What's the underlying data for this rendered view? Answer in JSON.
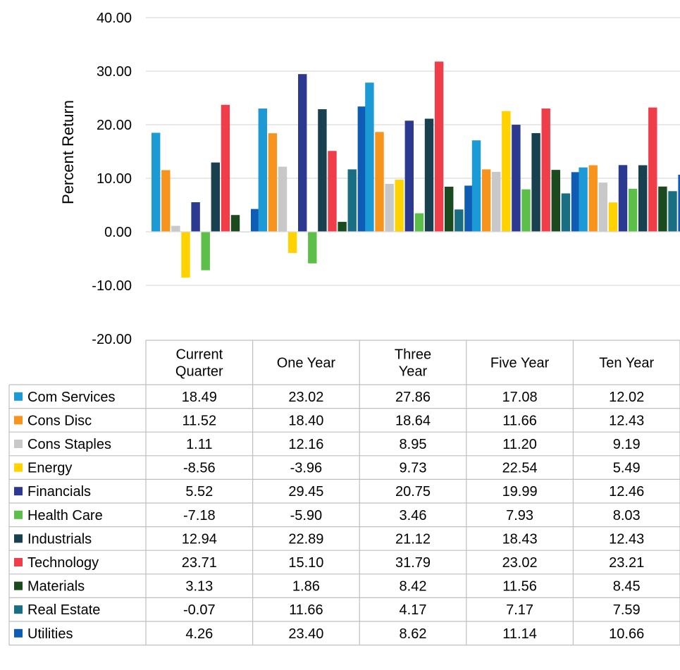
{
  "chart_data": {
    "type": "bar",
    "title": "",
    "xlabel": "",
    "ylabel": "Percent Return",
    "ylim": [
      -20,
      40
    ],
    "yticks": [
      "40.00",
      "30.00",
      "20.00",
      "10.00",
      "0.00",
      "-10.00",
      "-20.00"
    ],
    "ytick_values": [
      40,
      30,
      20,
      10,
      0,
      -10,
      -20
    ],
    "grid": true,
    "legend": "data-table-below",
    "categories": [
      [
        "Current",
        "Quarter"
      ],
      [
        "One Year"
      ],
      [
        "Three",
        "Year"
      ],
      [
        "Five Year"
      ],
      [
        "Ten Year"
      ]
    ],
    "series": [
      {
        "name": "Com Services",
        "color": "#1B9AD6",
        "values": [
          18.49,
          23.02,
          27.86,
          17.08,
          12.02
        ],
        "labels": [
          "18.49",
          "23.02",
          "27.86",
          "17.08",
          "12.02"
        ]
      },
      {
        "name": "Cons Disc",
        "color": "#F7941D",
        "values": [
          11.52,
          18.4,
          18.64,
          11.66,
          12.43
        ],
        "labels": [
          "11.52",
          "18.40",
          "18.64",
          "11.66",
          "12.43"
        ]
      },
      {
        "name": "Cons Staples",
        "color": "#C8C8C8",
        "values": [
          1.11,
          12.16,
          8.95,
          11.2,
          9.19
        ],
        "labels": [
          "1.11",
          "12.16",
          "8.95",
          "11.20",
          "9.19"
        ]
      },
      {
        "name": "Energy",
        "color": "#FFD200",
        "values": [
          -8.56,
          -3.96,
          9.73,
          22.54,
          5.49
        ],
        "labels": [
          "-8.56",
          "-3.96",
          "9.73",
          "22.54",
          "5.49"
        ]
      },
      {
        "name": "Financials",
        "color": "#2B3990",
        "values": [
          5.52,
          29.45,
          20.75,
          19.99,
          12.46
        ],
        "labels": [
          "5.52",
          "29.45",
          "20.75",
          "19.99",
          "12.46"
        ]
      },
      {
        "name": "Health Care",
        "color": "#5CBF4A",
        "values": [
          -7.18,
          -5.9,
          3.46,
          7.93,
          8.03
        ],
        "labels": [
          "-7.18",
          "-5.90",
          "3.46",
          "7.93",
          "8.03"
        ]
      },
      {
        "name": "Industrials",
        "color": "#18404F",
        "values": [
          12.94,
          22.89,
          21.12,
          18.43,
          12.43
        ],
        "labels": [
          "12.94",
          "22.89",
          "21.12",
          "18.43",
          "12.43"
        ]
      },
      {
        "name": "Technology",
        "color": "#EF3E4A",
        "values": [
          23.71,
          15.1,
          31.79,
          23.02,
          23.21
        ],
        "labels": [
          "23.71",
          "15.10",
          "31.79",
          "23.02",
          "23.21"
        ]
      },
      {
        "name": "Materials",
        "color": "#1B4A1F",
        "values": [
          3.13,
          1.86,
          8.42,
          11.56,
          8.45
        ],
        "labels": [
          "3.13",
          "1.86",
          "8.42",
          "11.56",
          "8.45"
        ]
      },
      {
        "name": "Real Estate",
        "color": "#1A6E84",
        "values": [
          -0.07,
          11.66,
          4.17,
          7.17,
          7.59
        ],
        "labels": [
          "-0.07",
          "11.66",
          "4.17",
          "7.17",
          "7.59"
        ]
      },
      {
        "name": "Utilities",
        "color": "#0F5CB5",
        "values": [
          4.26,
          23.4,
          8.62,
          11.14,
          10.66
        ],
        "labels": [
          "4.26",
          "23.40",
          "8.62",
          "11.14",
          "10.66"
        ]
      }
    ]
  }
}
